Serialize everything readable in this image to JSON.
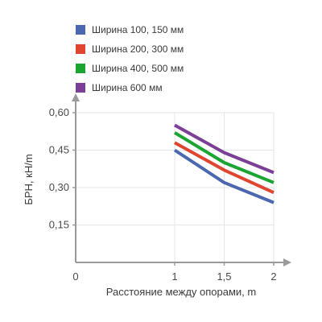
{
  "chart_data": {
    "type": "line",
    "xlabel": "Расстояние между опорами, m",
    "ylabel": "БРН, кН/m",
    "xlim": [
      0,
      2
    ],
    "ylim": [
      0,
      0.6
    ],
    "x_ticks": [
      0,
      1,
      1.5,
      2
    ],
    "x_tick_labels": [
      "0",
      "1",
      "1,5",
      "2"
    ],
    "y_ticks": [
      0.15,
      0.3,
      0.45,
      0.6
    ],
    "y_tick_labels": [
      "0,15",
      "0,30",
      "0,45",
      "0,60"
    ],
    "grid": true,
    "legend_position": "top-left",
    "x": [
      1,
      1.5,
      2
    ],
    "series": [
      {
        "name": "Ширина 100, 150 мм",
        "color": "#4a67b0",
        "values": [
          0.45,
          0.32,
          0.24
        ]
      },
      {
        "name": "Ширина 200, 300 мм",
        "color": "#e0452f",
        "values": [
          0.48,
          0.37,
          0.28
        ]
      },
      {
        "name": "Ширина 400, 500 мм",
        "color": "#1aa533",
        "values": [
          0.52,
          0.4,
          0.32
        ]
      },
      {
        "name": "Ширина 600 мм",
        "color": "#7b3f96",
        "values": [
          0.55,
          0.44,
          0.36
        ]
      }
    ]
  }
}
